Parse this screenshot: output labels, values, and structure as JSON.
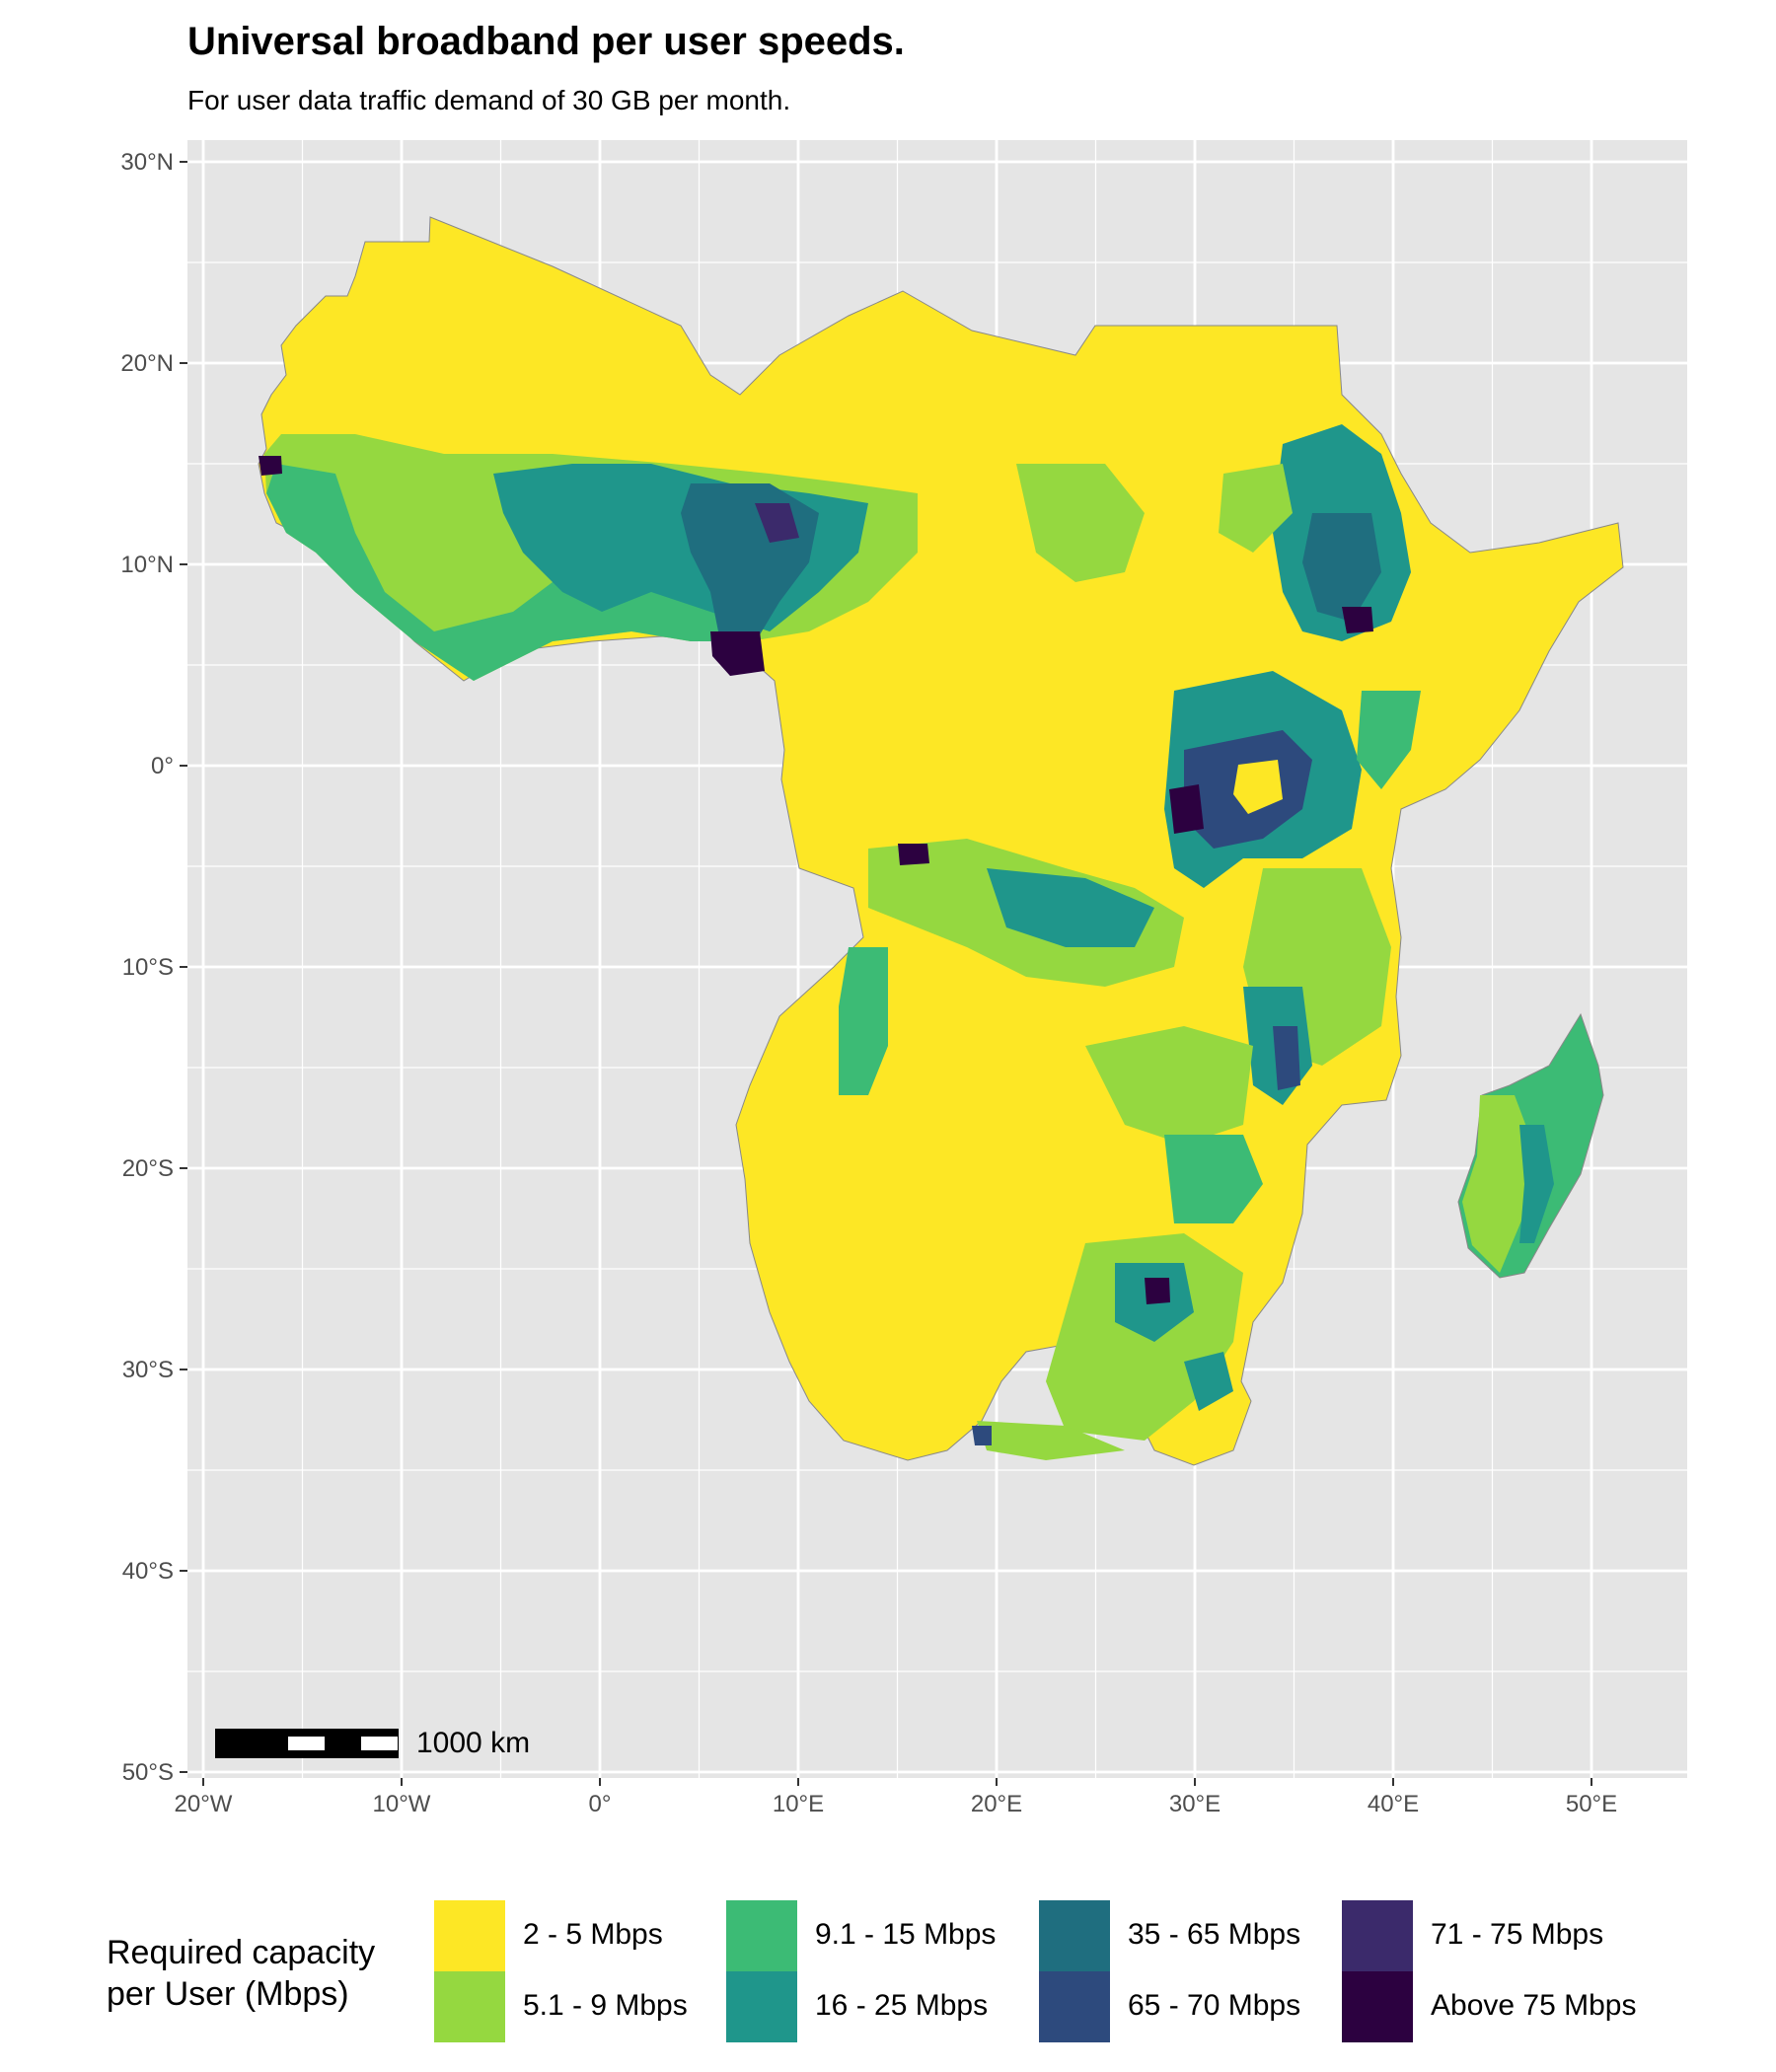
{
  "title": "Universal broadband per user speeds.",
  "subtitle": "For user data traffic demand of 30 GB per month.",
  "map": {
    "lat_ticks": [
      "30°N",
      "20°N",
      "10°N",
      "0°",
      "10°S",
      "20°S",
      "30°S",
      "40°S",
      "50°S"
    ],
    "lon_ticks": [
      "20°W",
      "10°W",
      "0°",
      "10°E",
      "20°E",
      "30°E",
      "40°E",
      "50°E"
    ],
    "background_color": "#e5e5e5",
    "grid_color": "#ffffff",
    "scalebar_label": "1000 km"
  },
  "legend": {
    "title_line1": "Required capacity",
    "title_line2": "per User (Mbps)",
    "items": [
      {
        "label": "2 - 5 Mbps",
        "color": "#fde725"
      },
      {
        "label": "5.1 - 9 Mbps",
        "color": "#95d840"
      },
      {
        "label": "9.1 - 15 Mbps",
        "color": "#3cbb75"
      },
      {
        "label": "16 - 25 Mbps",
        "color": "#1f968b"
      },
      {
        "label": "35 - 65 Mbps",
        "color": "#1f6e7f"
      },
      {
        "label": "65 - 70 Mbps",
        "color": "#2d4a7d"
      },
      {
        "label": "71 - 75 Mbps",
        "color": "#3b2a6b"
      },
      {
        "label": "Above 75 Mbps",
        "color": "#2c0140"
      }
    ]
  }
}
